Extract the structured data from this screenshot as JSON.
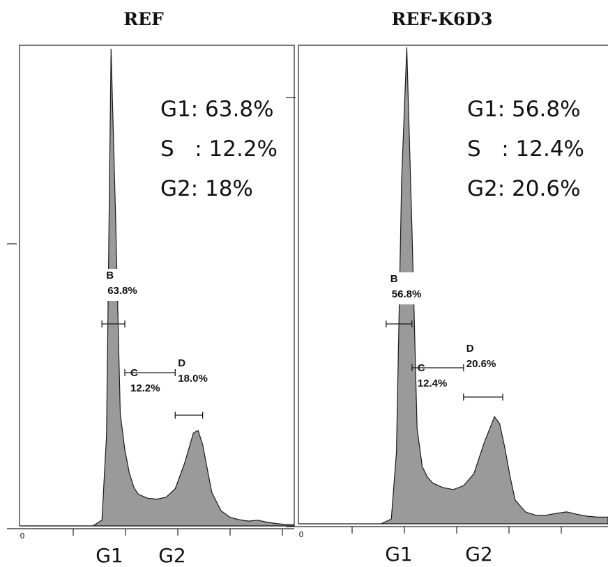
{
  "chart_data": [
    {
      "type": "area",
      "title": "REF",
      "summary_lines": [
        "G1: 63.8%",
        "S   : 12.2%",
        "G2: 18%"
      ],
      "phase_labels": [
        "G1",
        "G2"
      ],
      "x_axis_label": "0",
      "x": [
        0,
        8,
        9,
        9.5,
        10,
        10.5,
        11,
        11.5,
        12,
        12.5,
        13,
        14,
        15,
        16,
        17,
        18,
        19,
        19.5,
        20,
        20.5,
        21,
        22,
        23,
        24,
        25,
        26,
        27,
        28,
        29,
        30
      ],
      "y": [
        0,
        0,
        12,
        190,
        1000,
        640,
        235,
        160,
        110,
        80,
        66,
        58,
        56,
        60,
        78,
        130,
        195,
        200,
        170,
        120,
        70,
        32,
        18,
        13,
        10,
        12,
        8,
        5,
        3,
        2
      ],
      "ylim": [
        0,
        1000
      ],
      "gates": [
        {
          "label": "B",
          "percent": "63.8%",
          "from": 9.0,
          "to": 11.5
        },
        {
          "label": "C",
          "percent": "12.2%",
          "from": 11.5,
          "to": 17.0
        },
        {
          "label": "D",
          "percent": "18.0%",
          "from": 17.0,
          "to": 20.0
        }
      ]
    },
    {
      "type": "area",
      "title": "REF-K6D3",
      "summary_lines": [
        "G1: 56.8%",
        "S   : 12.4%",
        "G2: 20.6%"
      ],
      "phase_labels": [
        "G1",
        "G2"
      ],
      "x_axis_label": "0",
      "x": [
        0,
        8,
        9,
        9.5,
        10,
        10.5,
        11,
        11.5,
        12,
        12.5,
        13,
        14,
        15,
        16,
        17,
        18,
        19,
        19.5,
        20,
        20.5,
        21,
        22,
        23,
        24,
        25,
        26,
        27,
        28,
        29,
        30
      ],
      "y": [
        0,
        0,
        10,
        150,
        720,
        1000,
        620,
        200,
        120,
        98,
        86,
        76,
        72,
        80,
        105,
        170,
        225,
        210,
        160,
        100,
        50,
        25,
        18,
        18,
        22,
        25,
        20,
        16,
        14,
        14
      ],
      "ylim": [
        0,
        1000
      ],
      "gates": [
        {
          "label": "B",
          "percent": "56.8%",
          "from": 8.5,
          "to": 11.0
        },
        {
          "label": "C",
          "percent": "12.4%",
          "from": 11.0,
          "to": 16.0
        },
        {
          "label": "D",
          "percent": "20.6%",
          "from": 16.0,
          "to": 19.8
        }
      ]
    }
  ],
  "colors": {
    "fill": "#9a9a9a",
    "stroke": "#1a1a1a",
    "frame": "#222222",
    "text": "#111111"
  }
}
